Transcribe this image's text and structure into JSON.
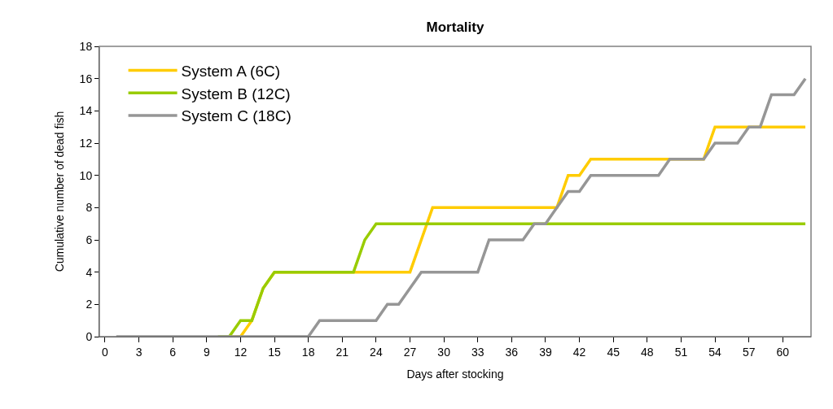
{
  "chart_data": {
    "type": "line",
    "title": "Mortality",
    "xlabel": "Days after stocking",
    "ylabel": "Cumulative number of dead fish",
    "x": [
      1,
      2,
      3,
      4,
      5,
      6,
      7,
      8,
      9,
      10,
      11,
      12,
      13,
      14,
      15,
      16,
      17,
      18,
      19,
      20,
      21,
      22,
      23,
      24,
      25,
      26,
      27,
      28,
      29,
      30,
      31,
      32,
      33,
      34,
      35,
      36,
      37,
      38,
      39,
      40,
      41,
      42,
      43,
      44,
      45,
      46,
      47,
      48,
      49,
      50,
      51,
      52,
      53,
      54,
      55,
      56,
      57,
      58,
      59,
      60,
      61,
      62
    ],
    "series": [
      {
        "name": "System A (6C)",
        "color": "#ffcc00",
        "values": [
          null,
          null,
          null,
          null,
          null,
          null,
          null,
          null,
          null,
          null,
          0,
          0,
          1,
          3,
          4,
          4,
          4,
          4,
          4,
          4,
          4,
          4,
          4,
          4,
          4,
          4,
          4,
          6,
          8,
          8,
          8,
          8,
          8,
          8,
          8,
          8,
          8,
          8,
          8,
          8,
          10,
          10,
          11,
          11,
          11,
          11,
          11,
          11,
          11,
          11,
          11,
          11,
          11,
          13,
          13,
          13,
          13,
          13,
          13,
          13,
          13,
          13
        ]
      },
      {
        "name": "System B (12C)",
        "color": "#99cc00",
        "values": [
          null,
          null,
          null,
          null,
          null,
          null,
          null,
          null,
          null,
          0,
          0,
          1,
          1,
          3,
          4,
          4,
          4,
          4,
          4,
          4,
          4,
          4,
          6,
          7,
          7,
          7,
          7,
          7,
          7,
          7,
          7,
          7,
          7,
          7,
          7,
          7,
          7,
          7,
          7,
          7,
          7,
          7,
          7,
          7,
          7,
          7,
          7,
          7,
          7,
          7,
          7,
          7,
          7,
          7,
          7,
          7,
          7,
          7,
          7,
          7,
          7,
          7
        ]
      },
      {
        "name": "System C (18C)",
        "color": "#969696",
        "values": [
          0,
          0,
          0,
          0,
          0,
          0,
          0,
          0,
          0,
          0,
          0,
          0,
          0,
          0,
          0,
          0,
          0,
          0,
          1,
          1,
          1,
          1,
          1,
          1,
          2,
          2,
          3,
          4,
          4,
          4,
          4,
          4,
          4,
          6,
          6,
          6,
          6,
          7,
          7,
          8,
          9,
          9,
          10,
          10,
          10,
          10,
          10,
          10,
          10,
          11,
          11,
          11,
          11,
          12,
          12,
          12,
          13,
          13,
          15,
          15,
          15,
          16
        ]
      }
    ],
    "xlim": [
      -0.5,
      62.5
    ],
    "xticks": [
      0,
      3,
      6,
      9,
      12,
      15,
      18,
      21,
      24,
      27,
      30,
      33,
      36,
      39,
      42,
      45,
      48,
      51,
      54,
      57,
      60
    ],
    "ylim": [
      0,
      18
    ],
    "yticks": [
      0,
      2,
      4,
      6,
      8,
      10,
      12,
      14,
      16,
      18
    ],
    "legend": "top left",
    "marker": "none",
    "line_style": "solid"
  }
}
